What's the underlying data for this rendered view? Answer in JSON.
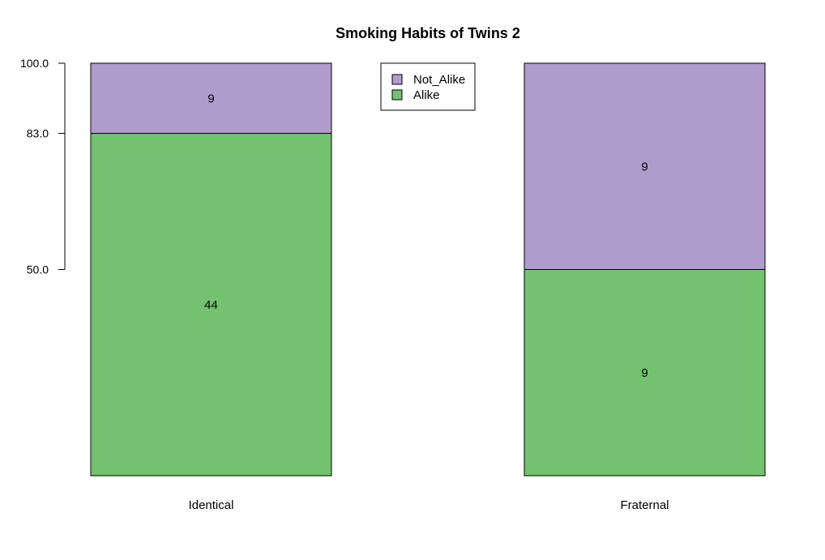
{
  "chart_data": {
    "type": "bar",
    "stacked": true,
    "title": "Smoking Habits of Twins 2",
    "xlabel": "",
    "ylabel": "",
    "categories": [
      "Identical",
      "Fraternal"
    ],
    "ylim": [
      0,
      100
    ],
    "yticks": [
      "50.0",
      "83.0",
      "100.0"
    ],
    "ytick_values": [
      50,
      83,
      100
    ],
    "series": [
      {
        "name": "Alike",
        "color": "#72c26f",
        "percent": [
          83,
          50
        ],
        "labels": [
          "44",
          "9"
        ]
      },
      {
        "name": "Not_Alike",
        "color": "#b09ccc",
        "percent": [
          17,
          50
        ],
        "labels": [
          "9",
          "9"
        ]
      }
    ],
    "legend": {
      "placement": "top-center",
      "entries": [
        "Not_Alike",
        "Alike"
      ]
    },
    "grid": false
  }
}
